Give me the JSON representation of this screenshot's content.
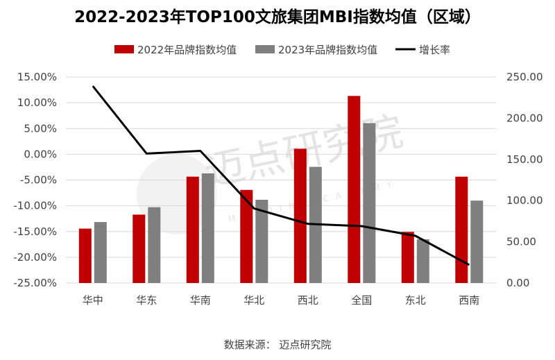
{
  "chart_data": {
    "type": "bar",
    "title": "2022-2023年TOP100文旅集团MBI指数均值（区域）",
    "categories": [
      "华中",
      "华东",
      "华南",
      "华北",
      "西北",
      "全国",
      "东北",
      "西南"
    ],
    "series": [
      {
        "name": "2022年品牌指数均值",
        "kind": "bar",
        "axis": "right",
        "color": "#c00000",
        "values": [
          66.0,
          83.0,
          129.0,
          113.0,
          163.0,
          227.0,
          62.0,
          129.0
        ]
      },
      {
        "name": "2023年品牌指数均值",
        "kind": "bar",
        "axis": "right",
        "color": "#7f7f7f",
        "values": [
          74.0,
          92.0,
          133.0,
          101.0,
          141.0,
          194.0,
          53.0,
          100.0
        ]
      },
      {
        "name": "增长率",
        "kind": "line",
        "axis": "left",
        "color": "#000000",
        "values": [
          0.1324,
          0.0013,
          0.0066,
          -0.1053,
          -0.1351,
          -0.1396,
          -0.1584,
          -0.2148
        ]
      }
    ],
    "left_axis": {
      "min": -0.25,
      "max": 0.15,
      "step": 0.05,
      "tick_labels": [
        "15.00%",
        "10.00%",
        "5.00%",
        "0.00%",
        "-5.00%",
        "-10.00%",
        "-15.00%",
        "-20.00%",
        "-25.00%"
      ]
    },
    "right_axis": {
      "min": 0,
      "max": 250,
      "step": 50,
      "tick_labels": [
        "250.00",
        "200.00",
        "150.00",
        "100.00",
        "50.00",
        "0.00"
      ]
    },
    "legend_position": "top",
    "grid": true
  },
  "source_text": "数据来源：  迈点研究院",
  "watermark": {
    "main": "迈点研究院",
    "sub": "MEADIN ACADEMY"
  }
}
